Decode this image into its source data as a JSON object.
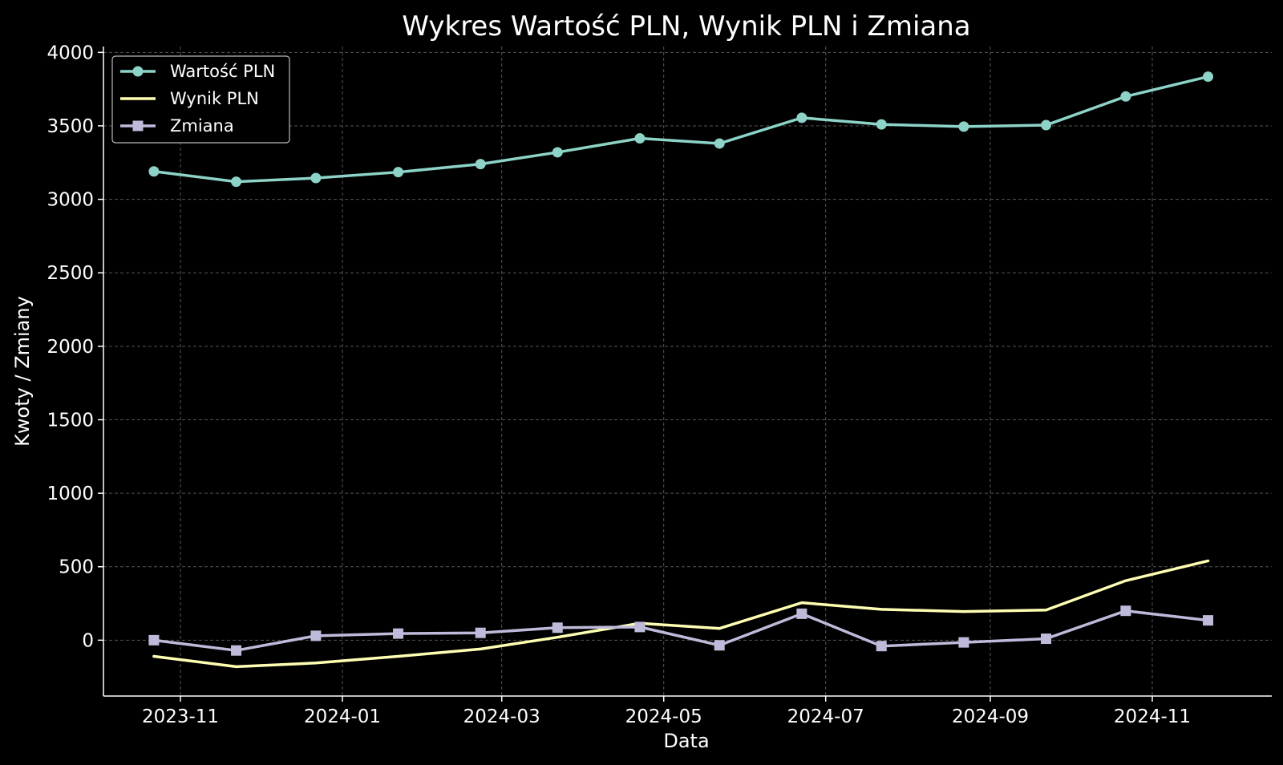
{
  "chart_data": {
    "type": "line",
    "title": "Wykres Wartość PLN, Wynik PLN i Zmiana",
    "xlabel": "Data",
    "ylabel": "Kwoty / Zmiany",
    "x": [
      "2023-10-22",
      "2023-11-22",
      "2023-12-22",
      "2024-01-22",
      "2024-02-22",
      "2024-03-22",
      "2024-04-22",
      "2024-05-22",
      "2024-06-22",
      "2024-07-22",
      "2024-08-22",
      "2024-09-22",
      "2024-10-22",
      "2024-11-22"
    ],
    "xlim": [
      "2023-10-03",
      "2024-12-16"
    ],
    "xticks": [
      "2023-11-01",
      "2024-01-01",
      "2024-03-01",
      "2024-05-01",
      "2024-07-01",
      "2024-09-01",
      "2024-11-01"
    ],
    "xtick_labels": [
      "2023-11",
      "2024-01",
      "2024-03",
      "2024-05",
      "2024-07",
      "2024-09",
      "2024-11"
    ],
    "ylim": [
      -380,
      4040
    ],
    "yticks": [
      0,
      500,
      1000,
      1500,
      2000,
      2500,
      3000,
      3500,
      4000
    ],
    "grid": true,
    "legend_position": "top-left",
    "series": [
      {
        "name": "Wartość PLN",
        "color": "#8dd3c7",
        "marker": "circle",
        "values": [
          3190,
          3120,
          3145,
          3185,
          3240,
          3320,
          3415,
          3380,
          3555,
          3510,
          3495,
          3505,
          3700,
          3835
        ]
      },
      {
        "name": "Wynik PLN",
        "color": "#ffffb3",
        "marker": "none",
        "values": [
          -110,
          -180,
          -155,
          -110,
          -60,
          20,
          115,
          80,
          255,
          210,
          195,
          205,
          405,
          540
        ]
      },
      {
        "name": "Zmiana",
        "color": "#bebada",
        "marker": "square",
        "values": [
          0,
          -70,
          30,
          45,
          50,
          85,
          90,
          -35,
          180,
          -40,
          -15,
          10,
          200,
          135
        ]
      }
    ]
  }
}
